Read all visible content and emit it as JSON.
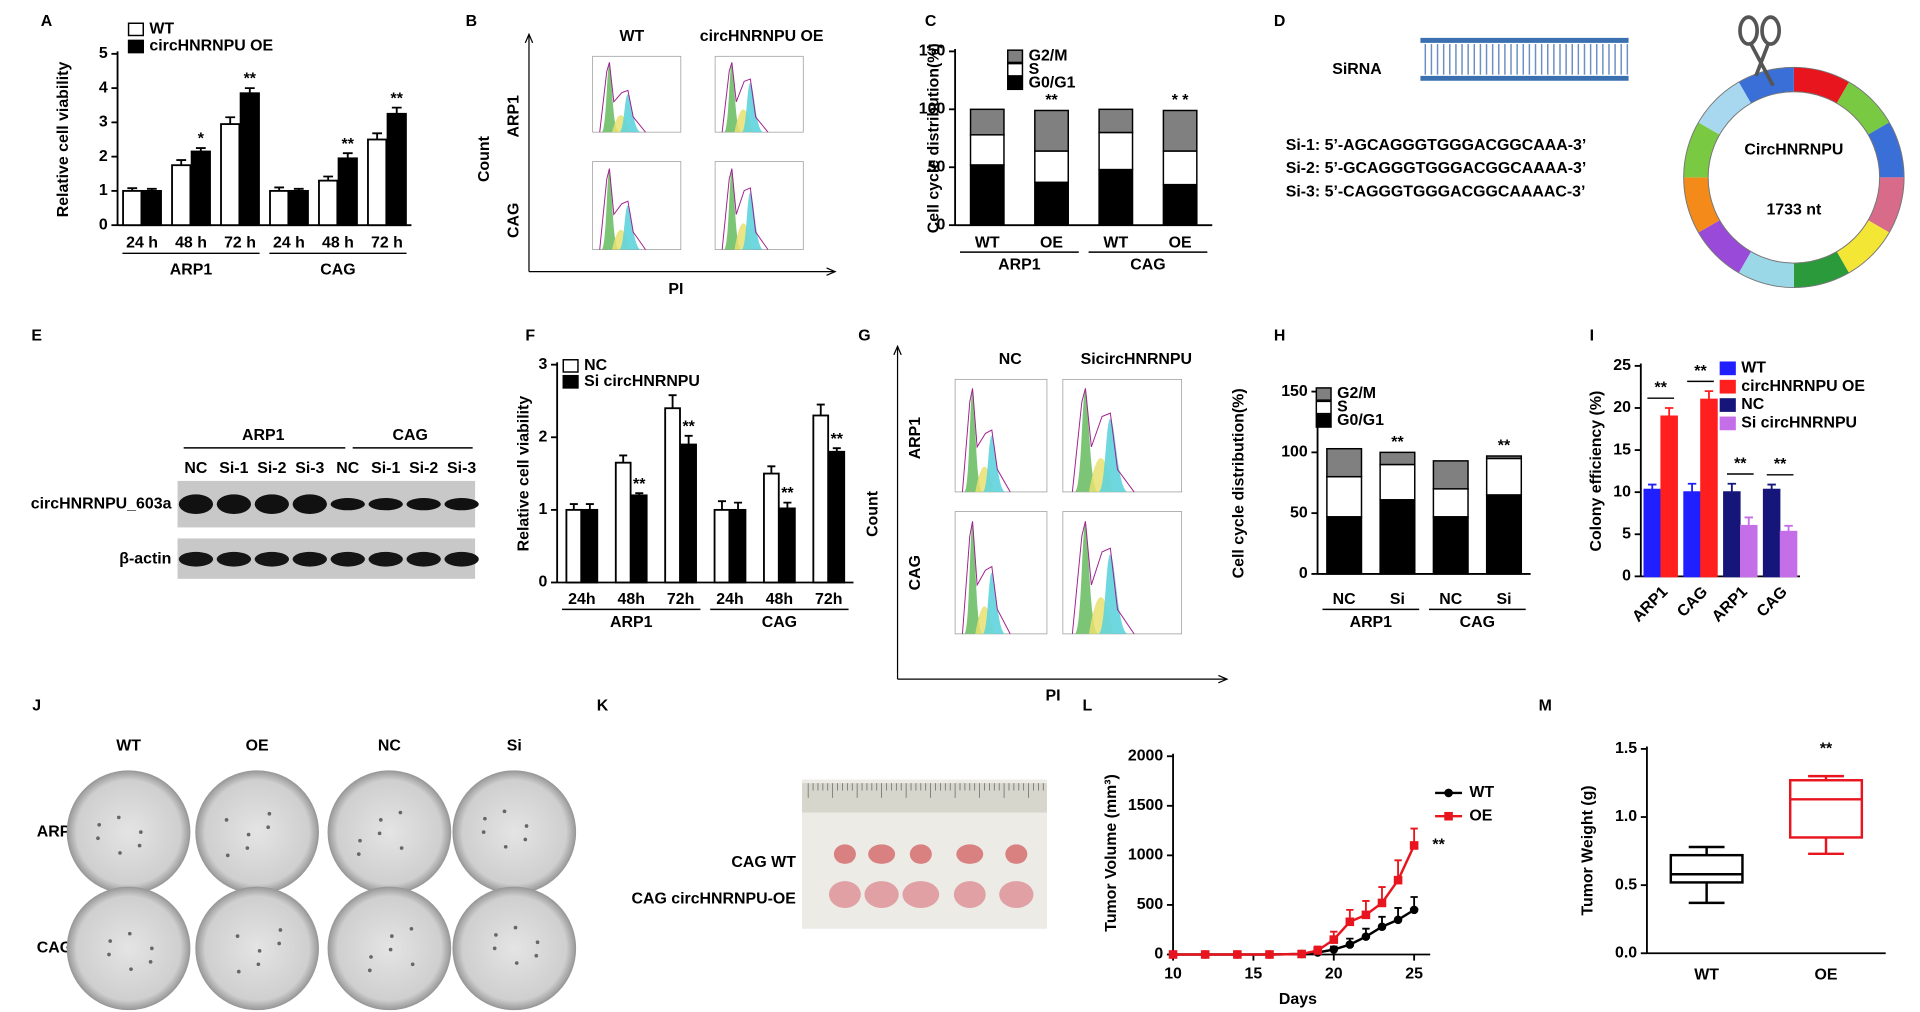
{
  "panel_labels": [
    "A",
    "B",
    "C",
    "D",
    "E",
    "F",
    "G",
    "H",
    "I",
    "J",
    "K",
    "L",
    "M"
  ],
  "panel_b": {
    "columns": [
      "WT",
      "circHNRNPU OE"
    ],
    "rows": [
      "ARP1",
      "CAG"
    ],
    "y_label": "Count",
    "x_label": "PI"
  },
  "panel_d": {
    "sirna_label": "SiRNA",
    "sequences": [
      "Si-1: 5’-AGCAGGGTGGGACGGCAAA-3’",
      "Si-2: 5’-GCAGGGTGGGACGGCAAAA-3’",
      "Si-3: 5’-CAGGGTGGGACGGCAAAAC-3’"
    ],
    "circle_label": "CircHNRNPU",
    "length": "1733 nt"
  },
  "panel_e": {
    "groups": [
      "ARP1",
      "CAG"
    ],
    "lanes": [
      "NC",
      "Si-1",
      "Si-2",
      "Si-3",
      "NC",
      "Si-1",
      "Si-2",
      "Si-3"
    ],
    "rows": [
      "circHNRNPU_603a",
      "β-actin"
    ]
  },
  "panel_g": {
    "columns": [
      "NC",
      "SicircHNRNPU"
    ],
    "rows": [
      "ARP1",
      "CAG"
    ],
    "y_label": "Count",
    "x_label": "PI"
  },
  "panel_j": {
    "columns": [
      "WT",
      "OE",
      "NC",
      "Si"
    ],
    "rows": [
      "ARP1",
      "CAG"
    ]
  },
  "panel_k": {
    "rows": [
      "CAG WT",
      "CAG circHNRNPU-OE"
    ]
  },
  "chart_data": [
    {
      "type": "bar",
      "y_label": "Relative cell viability",
      "categories": [
        "24 h",
        "48 h",
        "72 h",
        "24 h",
        "48 h",
        "72 h"
      ],
      "groups": [
        "ARP1",
        "CAG"
      ],
      "series": [
        {
          "name": "WT",
          "color": "#ffffff",
          "values": [
            1.0,
            1.75,
            2.95,
            1.0,
            1.3,
            2.5
          ],
          "errors": [
            0.08,
            0.15,
            0.2,
            0.1,
            0.12,
            0.18
          ]
        },
        {
          "name": "circHNRNPU OE",
          "color": "#000000",
          "values": [
            1.0,
            2.15,
            3.85,
            1.0,
            1.95,
            3.25
          ],
          "errors": [
            0.06,
            0.1,
            0.15,
            0.06,
            0.15,
            0.18
          ]
        }
      ],
      "sig": [
        null,
        "*",
        "**",
        null,
        "**",
        "**"
      ],
      "ylim": [
        0,
        5
      ],
      "yticks": [
        0,
        1,
        2,
        3,
        4,
        5
      ]
    },
    {
      "type": "stacked-bar",
      "y_label": "Cell cycle distribution(%)",
      "categories": [
        "WT",
        "OE",
        "WT",
        "OE"
      ],
      "groups": [
        "ARP1",
        "CAG"
      ],
      "series": [
        {
          "name": "G0/G1",
          "color": "#000000",
          "values": [
            52,
            37,
            48,
            35
          ]
        },
        {
          "name": "S",
          "color": "#ffffff",
          "values": [
            26,
            27,
            32,
            29
          ]
        },
        {
          "name": "G2/M",
          "color": "#808080",
          "values": [
            22,
            35,
            20,
            35
          ]
        }
      ],
      "sig": [
        null,
        "**",
        null,
        "* *"
      ],
      "ylim": [
        0,
        150
      ],
      "yticks": [
        0,
        50,
        100,
        150
      ]
    },
    {
      "type": "bar",
      "y_label": "Relative cell viability",
      "categories": [
        "24h",
        "48h",
        "72h",
        "24h",
        "48h",
        "72h"
      ],
      "groups": [
        "ARP1",
        "CAG"
      ],
      "series": [
        {
          "name": "NC",
          "color": "#ffffff",
          "values": [
            1.0,
            1.65,
            2.4,
            1.0,
            1.5,
            2.3
          ],
          "errors": [
            0.08,
            0.1,
            0.18,
            0.12,
            0.1,
            0.15
          ]
        },
        {
          "name": "Si circHNRNPU",
          "color": "#000000",
          "values": [
            1.0,
            1.2,
            1.9,
            1.0,
            1.02,
            1.8
          ],
          "errors": [
            0.08,
            0.03,
            0.12,
            0.1,
            0.08,
            0.05
          ]
        }
      ],
      "sig": [
        null,
        "**",
        "**",
        null,
        "**",
        "**"
      ],
      "ylim": [
        0,
        3
      ],
      "yticks": [
        0,
        1,
        2,
        3
      ]
    },
    {
      "type": "stacked-bar",
      "y_label": "Cell cycle distribution(%)",
      "categories": [
        "NC",
        "Si",
        "NC",
        "Si"
      ],
      "groups": [
        "ARP1",
        "CAG"
      ],
      "series": [
        {
          "name": "G0/G1",
          "color": "#000000",
          "values": [
            47,
            61,
            47,
            65
          ]
        },
        {
          "name": "S",
          "color": "#ffffff",
          "values": [
            33,
            29,
            23,
            30
          ]
        },
        {
          "name": "G2/M",
          "color": "#808080",
          "values": [
            23,
            10,
            23,
            2
          ]
        }
      ],
      "sig": [
        null,
        "**",
        null,
        "**"
      ],
      "ylim": [
        0,
        150
      ],
      "yticks": [
        0,
        50,
        100,
        150
      ]
    },
    {
      "type": "bar",
      "y_label": "Colony efficiency (%)",
      "categories": [
        "ARP1",
        "CAG",
        "ARP1",
        "CAG"
      ],
      "series": [
        {
          "name": "WT",
          "color": "#1f1fff",
          "values": [
            10.3,
            10,
            null,
            null
          ],
          "errors": [
            0.6,
            1,
            null,
            null
          ]
        },
        {
          "name": "circHNRNPU OE",
          "color": "#ff1f1f",
          "values": [
            19,
            21,
            null,
            null
          ],
          "errors": [
            1,
            1,
            null,
            null
          ]
        },
        {
          "name": "NC",
          "color": "#16167a",
          "values": [
            null,
            null,
            10,
            10.3
          ],
          "errors": [
            null,
            null,
            1,
            0.6
          ]
        },
        {
          "name": "Si circHNRNPU",
          "color": "#c46ee8",
          "values": [
            null,
            null,
            6,
            5.3
          ],
          "errors": [
            null,
            null,
            1,
            0.7
          ]
        }
      ],
      "sig": [
        "**",
        "**",
        "**",
        "**"
      ],
      "ylim": [
        0,
        25
      ],
      "yticks": [
        0,
        5,
        10,
        15,
        20,
        25
      ]
    },
    {
      "type": "line",
      "y_label": "Tumor Volume (mm³)",
      "x_label": "Days",
      "x": [
        10,
        12,
        14,
        16,
        18,
        19,
        20,
        21,
        22,
        23,
        24,
        25
      ],
      "series": [
        {
          "name": "WT",
          "color": "#000000",
          "marker": "circle",
          "values": [
            0,
            0,
            0,
            0,
            5,
            20,
            50,
            100,
            180,
            280,
            350,
            450
          ],
          "errors": [
            0,
            0,
            0,
            0,
            10,
            20,
            30,
            60,
            80,
            100,
            120,
            130
          ]
        },
        {
          "name": "OE",
          "color": "#e8141e",
          "marker": "square",
          "values": [
            0,
            0,
            0,
            0,
            5,
            40,
            150,
            330,
            400,
            520,
            750,
            1100
          ],
          "errors": [
            0,
            0,
            0,
            0,
            10,
            40,
            80,
            120,
            140,
            160,
            200,
            170
          ]
        }
      ],
      "annotation": "**",
      "xlim": [
        10,
        26
      ],
      "xticks": [
        10,
        15,
        20,
        25
      ],
      "ylim": [
        0,
        2000
      ],
      "yticks": [
        0,
        500,
        1000,
        1500,
        2000
      ]
    },
    {
      "type": "box",
      "y_label": "Tumor Weight (g)",
      "categories": [
        "WT",
        "OE"
      ],
      "boxes": [
        {
          "min": 0.37,
          "q1": 0.52,
          "median": 0.58,
          "q3": 0.72,
          "max": 0.78,
          "color": "#000000"
        },
        {
          "min": 0.73,
          "q1": 0.85,
          "median": 1.13,
          "q3": 1.27,
          "max": 1.3,
          "color": "#e8141e"
        }
      ],
      "sig": [
        null,
        "**"
      ],
      "ylim": [
        0,
        1.5
      ],
      "yticks": [
        {
          "value": 0,
          "label": "0.0"
        },
        0.5,
        {
          "value": 1,
          "label": "1.0"
        },
        1.5
      ]
    }
  ]
}
